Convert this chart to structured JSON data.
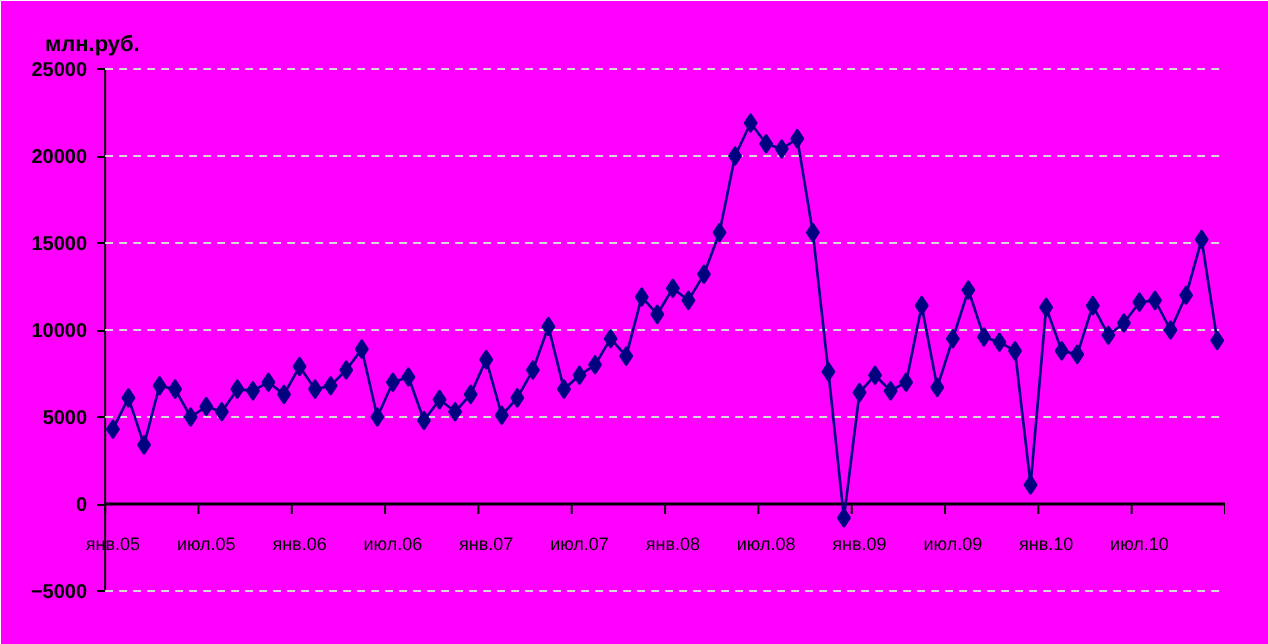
{
  "chart_data": {
    "type": "line",
    "ylabel": "млн.руб.",
    "categories": [
      "янв.05",
      null,
      null,
      null,
      null,
      null,
      "июл.05",
      null,
      null,
      null,
      null,
      null,
      "янв.06",
      null,
      null,
      null,
      null,
      null,
      "июл.06",
      null,
      null,
      null,
      null,
      null,
      "янв.07",
      null,
      null,
      null,
      null,
      null,
      "июл.07",
      null,
      null,
      null,
      null,
      null,
      "янв.08",
      null,
      null,
      null,
      null,
      null,
      "июл.08",
      null,
      null,
      null,
      null,
      null,
      "янв.09",
      null,
      null,
      null,
      null,
      null,
      "июл.09",
      null,
      null,
      null,
      null,
      null,
      "янв.10",
      null,
      null,
      null,
      null,
      null,
      "июл.10",
      null,
      null,
      null,
      null,
      null
    ],
    "series": [
      {
        "color": "#000080",
        "values": [
          4300,
          6100,
          3400,
          6800,
          6600,
          5000,
          5600,
          5300,
          6600,
          6500,
          7000,
          6300,
          7900,
          6600,
          6800,
          7700,
          8900,
          5000,
          7000,
          7300,
          4800,
          6000,
          5300,
          6300,
          8300,
          5100,
          6100,
          7700,
          10200,
          6600,
          7400,
          8000,
          9500,
          8500,
          11900,
          10900,
          12400,
          11700,
          13200,
          15600,
          20000,
          21900,
          20700,
          20400,
          21000,
          15600,
          7600,
          -800,
          6400,
          7400,
          6500,
          7000,
          11400,
          6700,
          9500,
          12300,
          9600,
          9300,
          8800,
          1100,
          11300,
          8800,
          8600,
          11400,
          9700,
          10400,
          11600,
          11700,
          10000,
          12000,
          15200,
          9400
        ]
      }
    ],
    "ylim": [
      -5000,
      25000
    ],
    "yticks": [
      -5000,
      0,
      5000,
      10000,
      15000,
      20000,
      25000
    ],
    "grid": "y",
    "marker": "diamond",
    "line_style": "solid"
  }
}
